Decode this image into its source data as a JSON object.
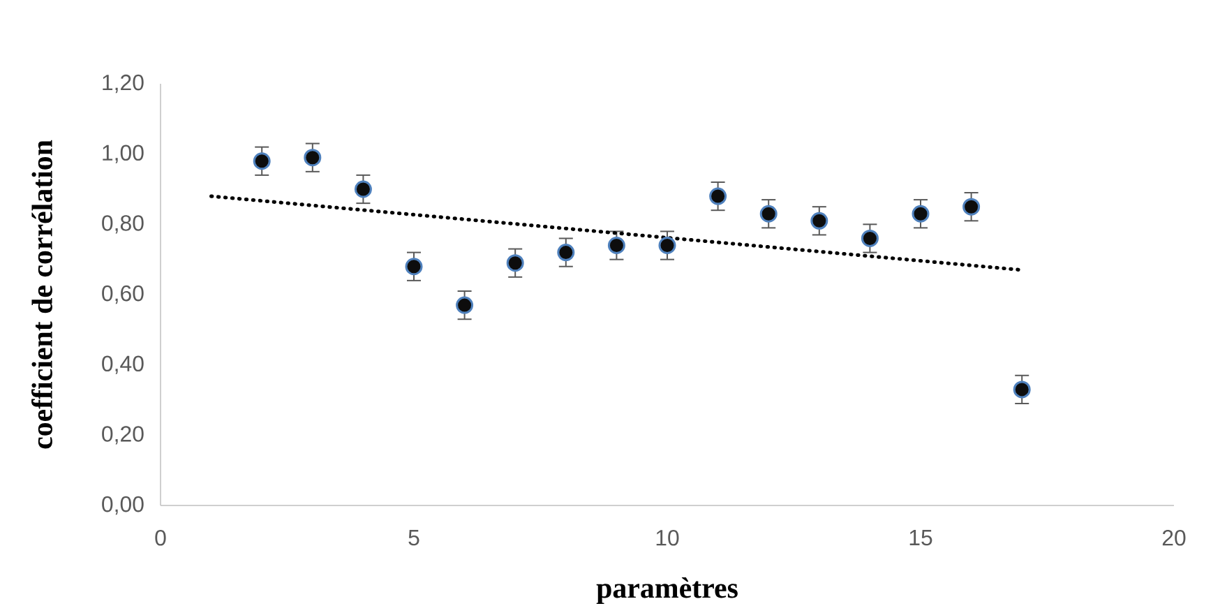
{
  "chart_data": {
    "type": "scatter",
    "xlabel": "paramètres",
    "ylabel": "coefficient de corrélation",
    "xlim": [
      0,
      20
    ],
    "xticks": [
      0,
      5,
      10,
      15,
      20
    ],
    "ylim": [
      0,
      1.2
    ],
    "yticks": [
      {
        "value": 0,
        "label": "0,00"
      },
      {
        "value": 0.2,
        "label": "0,20"
      },
      {
        "value": 0.4,
        "label": "0,40"
      },
      {
        "value": 0.6,
        "label": "0,60"
      },
      {
        "value": 0.8,
        "label": "0,80"
      },
      {
        "value": 1.0,
        "label": "1,00"
      },
      {
        "value": 1.2,
        "label": "1,20"
      }
    ],
    "series": [
      {
        "marker": "circle",
        "color": "#4f81bd",
        "x": [
          2,
          3,
          4,
          5,
          6,
          7,
          8,
          9,
          10,
          11,
          12,
          13,
          14,
          15,
          16,
          17
        ],
        "values": [
          0.98,
          0.99,
          0.9,
          0.68,
          0.57,
          0.69,
          0.72,
          0.74,
          0.74,
          0.88,
          0.83,
          0.81,
          0.76,
          0.83,
          0.85,
          0.33
        ],
        "errors": [
          0.04,
          0.04,
          0.04,
          0.04,
          0.04,
          0.04,
          0.04,
          0.04,
          0.04,
          0.04,
          0.04,
          0.04,
          0.04,
          0.04,
          0.04,
          0.04
        ]
      },
      {
        "type": "line",
        "color": "#000000",
        "line_style": "dotted",
        "x": [
          1,
          17
        ],
        "values": [
          0.88,
          0.67
        ]
      }
    ]
  }
}
